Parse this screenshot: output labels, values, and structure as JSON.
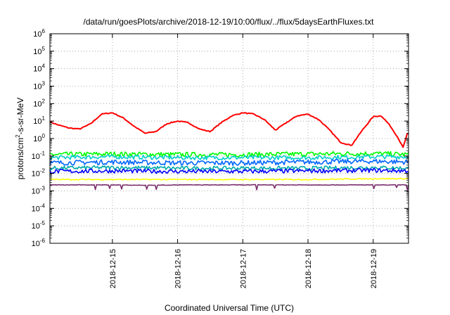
{
  "chart_data": {
    "type": "line",
    "title": "/data/run/goesPlots/archive/2018-12-19/10:00/flux/../flux/5daysEarthFluxes.txt",
    "xlabel": "Coordinated Universal Time (UTC)",
    "ylabel_parts": [
      "protons/cm",
      "2",
      "-s-sr-MeV"
    ],
    "y_scale": "log",
    "ylim": [
      1e-06,
      1000000.0
    ],
    "xlim": [
      "2018-12-14T01:00",
      "2018-12-19T13:00"
    ],
    "x_ticks": [
      "2018-12-15",
      "2018-12-16",
      "2018-12-17",
      "2018-12-18",
      "2018-12-19"
    ],
    "y_ticks": [
      {
        "value": 1e-06,
        "base": "10",
        "exp": "-6"
      },
      {
        "value": 1e-05,
        "base": "10",
        "exp": "-5"
      },
      {
        "value": 0.0001,
        "base": "10",
        "exp": "-4"
      },
      {
        "value": 0.001,
        "base": "10",
        "exp": "-3"
      },
      {
        "value": 0.01,
        "base": "10",
        "exp": "-2"
      },
      {
        "value": 0.1,
        "base": "10",
        "exp": "-1"
      },
      {
        "value": 1,
        "base": "10",
        "exp": "0"
      },
      {
        "value": 10.0,
        "base": "10",
        "exp": "1"
      },
      {
        "value": 100.0,
        "base": "10",
        "exp": "2"
      },
      {
        "value": 1000.0,
        "base": "10",
        "exp": "3"
      },
      {
        "value": 10000.0,
        "base": "10",
        "exp": "4"
      },
      {
        "value": 100000.0,
        "base": "10",
        "exp": "5"
      },
      {
        "value": 1000000.0,
        "base": "10",
        "exp": "6"
      }
    ],
    "grid": "dotted",
    "legend": "none",
    "series": [
      {
        "color": "#ff0000",
        "x": [
          "2018-12-14T01:00",
          "2018-12-14T04:00",
          "2018-12-14T08:00",
          "2018-12-14T12:00",
          "2018-12-14T16:00",
          "2018-12-14T20:00",
          "2018-12-15T00:00",
          "2018-12-15T04:00",
          "2018-12-15T08:00",
          "2018-12-15T12:00",
          "2018-12-15T16:00",
          "2018-12-15T20:00",
          "2018-12-16T00:00",
          "2018-12-16T04:00",
          "2018-12-16T08:00",
          "2018-12-16T12:00",
          "2018-12-16T16:00",
          "2018-12-16T20:00",
          "2018-12-17T00:00",
          "2018-12-17T04:00",
          "2018-12-17T08:00",
          "2018-12-17T12:00",
          "2018-12-17T16:00",
          "2018-12-17T20:00",
          "2018-12-18T00:00",
          "2018-12-18T04:00",
          "2018-12-18T08:00",
          "2018-12-18T12:00",
          "2018-12-18T16:00",
          "2018-12-18T20:00",
          "2018-12-19T00:00",
          "2018-12-19T03:00",
          "2018-12-19T06:00",
          "2018-12-19T09:00",
          "2018-12-19T11:00",
          "2018-12-19T12:30"
        ],
        "y": [
          9,
          6,
          4,
          3.5,
          7,
          25,
          30,
          15,
          5,
          2,
          2.5,
          7,
          10,
          8,
          3.5,
          2.5,
          8,
          20,
          30,
          25,
          12,
          3,
          8,
          20,
          25,
          12,
          3,
          0.6,
          0.4,
          3,
          18,
          20,
          6,
          1.2,
          0.3,
          1.8
        ]
      },
      {
        "color": "#00ff00",
        "x": [
          "2018-12-14T01:00",
          "2018-12-15T00:00",
          "2018-12-16T00:00",
          "2018-12-17T00:00",
          "2018-12-18T00:00",
          "2018-12-19T00:00",
          "2018-12-19T13:00"
        ],
        "y": [
          0.12,
          0.13,
          0.12,
          0.12,
          0.13,
          0.14,
          0.12
        ]
      },
      {
        "color": "#00cccc",
        "x": [
          "2018-12-14T01:00",
          "2018-12-15T00:00",
          "2018-12-16T00:00",
          "2018-12-17T00:00",
          "2018-12-18T00:00",
          "2018-12-19T00:00",
          "2018-12-19T13:00"
        ],
        "y": [
          0.08,
          0.09,
          0.08,
          0.08,
          0.08,
          0.09,
          0.09
        ]
      },
      {
        "color": "#0066ff",
        "x": [
          "2018-12-14T01:00",
          "2018-12-15T00:00",
          "2018-12-16T00:00",
          "2018-12-17T00:00",
          "2018-12-18T00:00",
          "2018-12-19T00:00",
          "2018-12-19T13:00"
        ],
        "y": [
          0.04,
          0.045,
          0.04,
          0.04,
          0.045,
          0.05,
          0.045
        ]
      },
      {
        "color": "#00aaaa",
        "x": [
          "2018-12-14T01:00",
          "2018-12-15T00:00",
          "2018-12-16T00:00",
          "2018-12-17T00:00",
          "2018-12-18T00:00",
          "2018-12-19T00:00",
          "2018-12-19T13:00"
        ],
        "y": [
          0.02,
          0.022,
          0.02,
          0.02,
          0.02,
          0.022,
          0.02
        ]
      },
      {
        "color": "#0000ff",
        "x": [
          "2018-12-14T01:00",
          "2018-12-15T00:00",
          "2018-12-16T00:00",
          "2018-12-17T00:00",
          "2018-12-18T00:00",
          "2018-12-19T00:00",
          "2018-12-19T13:00"
        ],
        "y": [
          0.013,
          0.014,
          0.013,
          0.013,
          0.014,
          0.015,
          0.014
        ]
      },
      {
        "color": "#ffff00",
        "x": [
          "2018-12-14T01:00",
          "2018-12-15T00:00",
          "2018-12-16T00:00",
          "2018-12-17T00:00",
          "2018-12-18T00:00",
          "2018-12-19T00:00",
          "2018-12-19T13:00"
        ],
        "y": [
          0.0045,
          0.0045,
          0.0045,
          0.0045,
          0.0045,
          0.005,
          0.005
        ]
      },
      {
        "color": "#7b2f6e",
        "x": [
          "2018-12-14T01:00",
          "2018-12-14T12:00",
          "2018-12-15T00:00",
          "2018-12-15T12:00",
          "2018-12-16T00:00",
          "2018-12-16T12:00",
          "2018-12-17T00:00",
          "2018-12-18T00:00",
          "2018-12-19T00:00",
          "2018-12-19T13:00"
        ],
        "y": [
          0.0022,
          0.0022,
          0.0022,
          0.0021,
          0.0022,
          0.0022,
          0.0022,
          0.0022,
          0.0022,
          0.0022
        ]
      }
    ]
  }
}
